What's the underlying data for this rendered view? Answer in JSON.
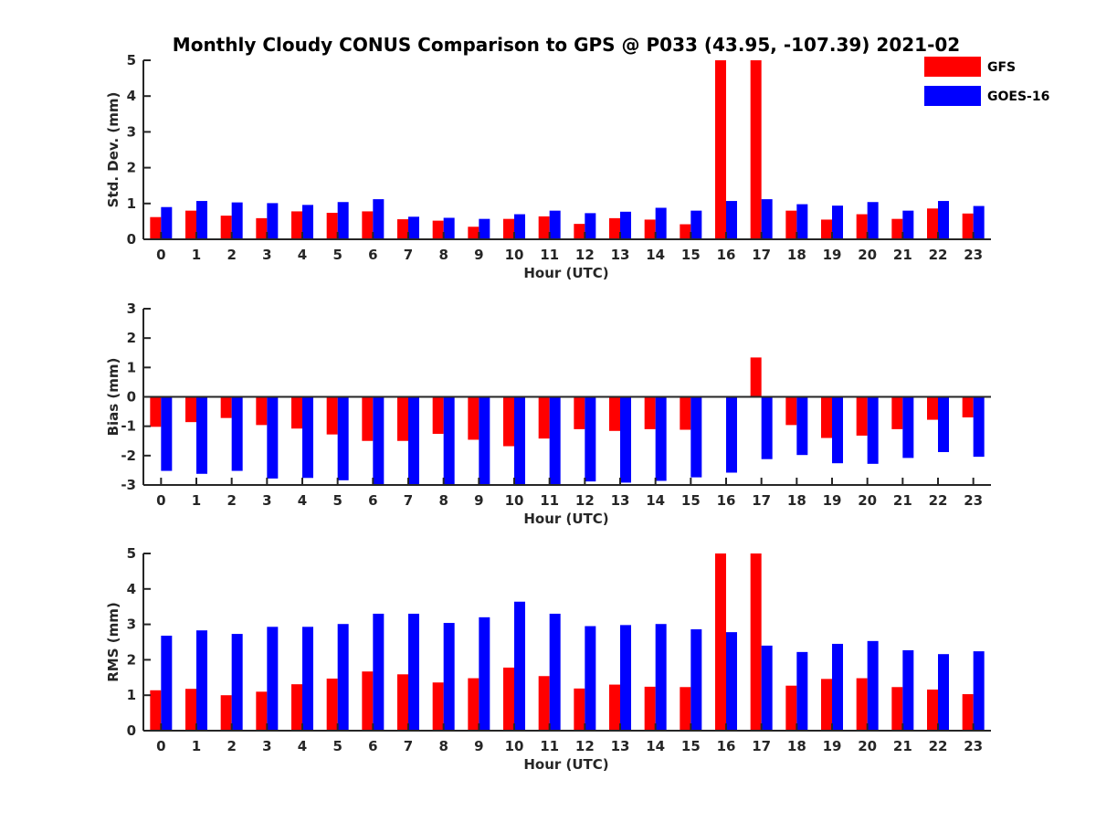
{
  "figure": {
    "title": "Monthly Cloudy CONUS Comparison to GPS @ P033 (43.95, -107.39) 2021-02"
  },
  "legend": {
    "items": [
      {
        "label": "GFS",
        "color": "#ff0000"
      },
      {
        "label": "GOES-16",
        "color": "#0000ff"
      }
    ]
  },
  "chart_data": [
    {
      "type": "bar",
      "ylabel": "Std. Dev. (mm)",
      "xlabel": "Hour (UTC)",
      "ylim": [
        0,
        5
      ],
      "yticks": [
        0,
        1,
        2,
        3,
        4,
        5
      ],
      "categories": [
        "0",
        "1",
        "2",
        "3",
        "4",
        "5",
        "6",
        "7",
        "8",
        "9",
        "10",
        "11",
        "12",
        "13",
        "14",
        "15",
        "16",
        "17",
        "18",
        "19",
        "20",
        "21",
        "22",
        "23"
      ],
      "series": [
        {
          "name": "GFS",
          "color": "#ff0000",
          "values": [
            0.62,
            0.8,
            0.66,
            0.59,
            0.78,
            0.74,
            0.78,
            0.56,
            0.52,
            0.35,
            0.57,
            0.64,
            0.43,
            0.59,
            0.55,
            0.42,
            5.0,
            5.0,
            0.8,
            0.55,
            0.7,
            0.57,
            0.86,
            0.72
          ]
        },
        {
          "name": "GOES-16",
          "color": "#0000ff",
          "values": [
            0.9,
            1.07,
            1.03,
            1.01,
            0.96,
            1.04,
            1.12,
            0.63,
            0.6,
            0.57,
            0.7,
            0.8,
            0.73,
            0.77,
            0.88,
            0.8,
            1.07,
            1.12,
            0.98,
            0.94,
            1.04,
            0.8,
            1.07,
            0.93
          ]
        }
      ]
    },
    {
      "type": "bar",
      "ylabel": "Bias (mm)",
      "xlabel": "Hour (UTC)",
      "ylim": [
        -3,
        3
      ],
      "yticks": [
        -3,
        -2,
        -1,
        0,
        1,
        2,
        3
      ],
      "categories": [
        "0",
        "1",
        "2",
        "3",
        "4",
        "5",
        "6",
        "7",
        "8",
        "9",
        "10",
        "11",
        "12",
        "13",
        "14",
        "15",
        "16",
        "17",
        "18",
        "19",
        "20",
        "21",
        "22",
        "23"
      ],
      "series": [
        {
          "name": "GFS",
          "color": "#ff0000",
          "values": [
            -1.02,
            -0.86,
            -0.72,
            -0.96,
            -1.08,
            -1.28,
            -1.5,
            -1.5,
            -1.26,
            -1.46,
            -1.68,
            -1.42,
            -1.1,
            -1.16,
            -1.1,
            -1.12,
            0.02,
            1.34,
            -0.96,
            -1.4,
            -1.32,
            -1.1,
            -0.78,
            -0.7
          ]
        },
        {
          "name": "GOES-16",
          "color": "#0000ff",
          "values": [
            -2.52,
            -2.62,
            -2.52,
            -2.78,
            -2.76,
            -2.84,
            -3.0,
            -3.0,
            -2.98,
            -3.0,
            -3.0,
            -3.0,
            -2.88,
            -2.92,
            -2.86,
            -2.74,
            -2.58,
            -2.12,
            -1.98,
            -2.26,
            -2.28,
            -2.08,
            -1.88,
            -2.04
          ]
        }
      ]
    },
    {
      "type": "bar",
      "ylabel": "RMS (mm)",
      "xlabel": "Hour (UTC)",
      "ylim": [
        0,
        5
      ],
      "yticks": [
        0,
        1,
        2,
        3,
        4,
        5
      ],
      "categories": [
        "0",
        "1",
        "2",
        "3",
        "4",
        "5",
        "6",
        "7",
        "8",
        "9",
        "10",
        "11",
        "12",
        "13",
        "14",
        "15",
        "16",
        "17",
        "18",
        "19",
        "20",
        "21",
        "22",
        "23"
      ],
      "series": [
        {
          "name": "GFS",
          "color": "#ff0000",
          "values": [
            1.14,
            1.18,
            1.0,
            1.1,
            1.31,
            1.47,
            1.67,
            1.59,
            1.36,
            1.48,
            1.78,
            1.54,
            1.19,
            1.3,
            1.24,
            1.23,
            5.0,
            5.0,
            1.27,
            1.46,
            1.48,
            1.23,
            1.16,
            1.03
          ]
        },
        {
          "name": "GOES-16",
          "color": "#0000ff",
          "values": [
            2.68,
            2.83,
            2.73,
            2.93,
            2.93,
            3.01,
            3.3,
            3.3,
            3.04,
            3.2,
            3.64,
            3.3,
            2.95,
            2.98,
            3.01,
            2.86,
            2.78,
            2.4,
            2.22,
            2.45,
            2.53,
            2.27,
            2.16,
            2.24
          ]
        }
      ]
    }
  ]
}
